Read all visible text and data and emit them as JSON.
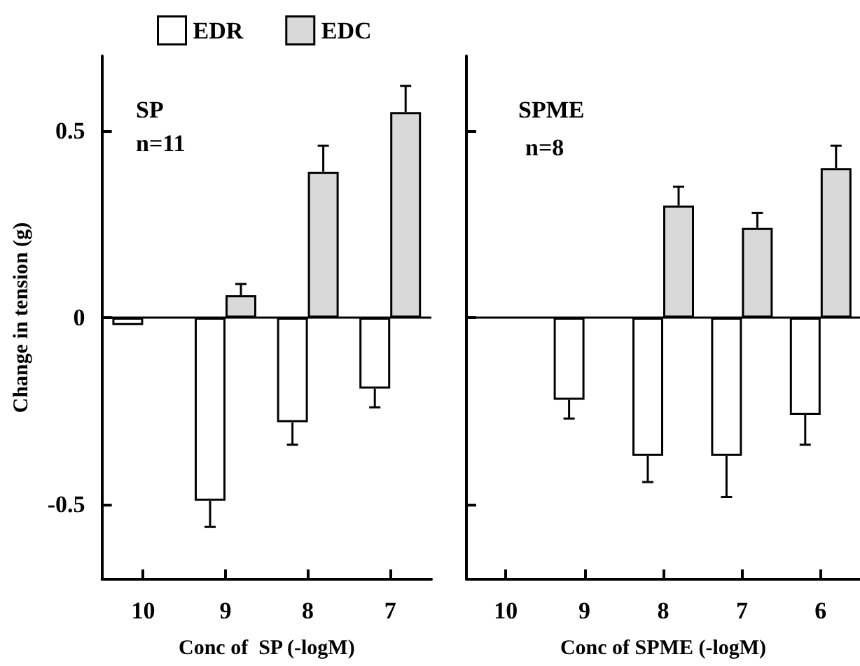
{
  "chart_data": [
    {
      "type": "bar",
      "categories": [
        "10",
        "9",
        "8",
        "7"
      ],
      "xlabel": "Conc of  SP (-logM)",
      "ylabel": "Change in tension (g)",
      "ylim": [
        -0.7,
        0.7
      ],
      "yticks": [
        -0.5,
        0,
        0.5
      ],
      "legend": "top",
      "annotations": [
        "SP",
        "n=11"
      ],
      "ref_lines": [
        {
          "axis": "y",
          "value": 0
        }
      ],
      "series": [
        {
          "name": "EDR",
          "color": "#ffffff",
          "values": [
            -0.02,
            -0.49,
            -0.28,
            -0.19
          ],
          "errors": [
            null,
            [
              -0.56,
              -0.49
            ],
            [
              -0.34,
              -0.28
            ],
            [
              -0.24,
              -0.19
            ]
          ]
        },
        {
          "name": "EDC",
          "color": "#d9d9d9",
          "values": [
            null,
            0.06,
            0.39,
            0.55
          ],
          "errors": [
            null,
            [
              0.06,
              0.09
            ],
            [
              0.39,
              0.46
            ],
            [
              0.55,
              0.62
            ]
          ]
        }
      ]
    },
    {
      "type": "bar",
      "categories": [
        "10",
        "9",
        "8",
        "7",
        "6"
      ],
      "xlabel": "Conc of SPME (-logM)",
      "ylim": [
        -0.7,
        0.7
      ],
      "yticks": [
        -0.5,
        0,
        0.5
      ],
      "tick_labels": "x",
      "annotations": [
        "SPME",
        "n=8"
      ],
      "ref_lines": [
        {
          "axis": "y",
          "value": 0
        }
      ],
      "series": [
        {
          "color": "#ffffff",
          "values": [
            null,
            -0.22,
            -0.37,
            -0.37,
            -0.26
          ],
          "errors": [
            null,
            [
              -0.27,
              -0.22
            ],
            [
              -0.44,
              -0.37
            ],
            [
              -0.48,
              -0.37
            ],
            [
              -0.34,
              -0.26
            ]
          ]
        },
        {
          "color": "#d9d9d9",
          "values": [
            null,
            null,
            0.3,
            0.24,
            0.4
          ],
          "errors": [
            null,
            null,
            [
              0.3,
              0.35
            ],
            [
              0.24,
              0.28
            ],
            [
              0.4,
              0.46
            ]
          ]
        }
      ]
    }
  ]
}
